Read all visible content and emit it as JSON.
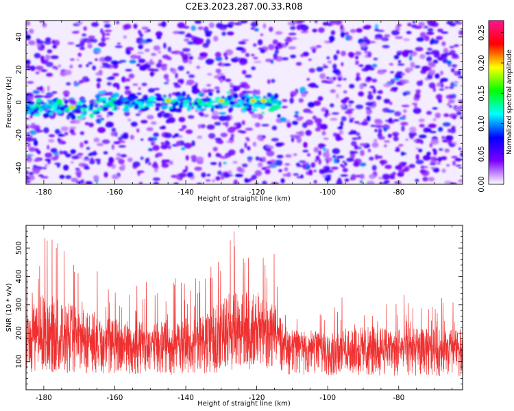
{
  "figure": {
    "title": "C2E3.2023.287.00.33.R08"
  },
  "chart_data": [
    {
      "type": "heatmap",
      "xlabel": "Height of straight line (km)",
      "ylabel": "Frequency (Hz)",
      "xlim": [
        -185,
        -62
      ],
      "ylim": [
        -50,
        50
      ],
      "xticks": [
        -180,
        -160,
        -140,
        -120,
        -100,
        -80
      ],
      "yticks": [
        -40,
        -20,
        0,
        20,
        40
      ],
      "colorbar": {
        "label": "Normalized spectral amplitude",
        "range": [
          0,
          0.27
        ],
        "ticks": [
          "0.00",
          "0.05",
          "0.10",
          "0.15",
          "0.20",
          "0.25"
        ],
        "colormap": [
          "#ffffff",
          "#7b00ff",
          "#0000ff",
          "#00ffff",
          "#00ff00",
          "#ffff00",
          "#ff0000",
          "#ff1493"
        ]
      },
      "features": {
        "background_level": 0.03,
        "band_center_hz": 0,
        "band_extent_km": [
          -185,
          -113
        ],
        "band_peak_level": 0.22,
        "strongest_peaks_km": [
          -172,
          -145,
          -130,
          -121,
          -118
        ]
      },
      "grid": false
    },
    {
      "type": "line",
      "xlabel": "Height of straight line (km)",
      "ylabel": "SNR (10 * v/v)",
      "xlim": [
        -185,
        -62
      ],
      "ylim": [
        0,
        580
      ],
      "xticks": [
        -180,
        -160,
        -140,
        -120,
        -100,
        -80
      ],
      "yticks": [
        100,
        200,
        300,
        400,
        500
      ],
      "series": [
        {
          "color": "#ef3030",
          "envelope_x": [
            -185,
            -180,
            -170,
            -160,
            -150,
            -140,
            -135,
            -130,
            -125,
            -120,
            -115,
            -112,
            -100,
            -90,
            -80,
            -70,
            -62
          ],
          "baseline": [
            145,
            150,
            150,
            140,
            130,
            135,
            140,
            160,
            175,
            180,
            170,
            135,
            120,
            120,
            120,
            120,
            120
          ],
          "peak_max": [
            420,
            580,
            460,
            390,
            380,
            400,
            400,
            550,
            580,
            550,
            500,
            300,
            320,
            350,
            340,
            330,
            330
          ]
        }
      ],
      "grid": false
    }
  ]
}
